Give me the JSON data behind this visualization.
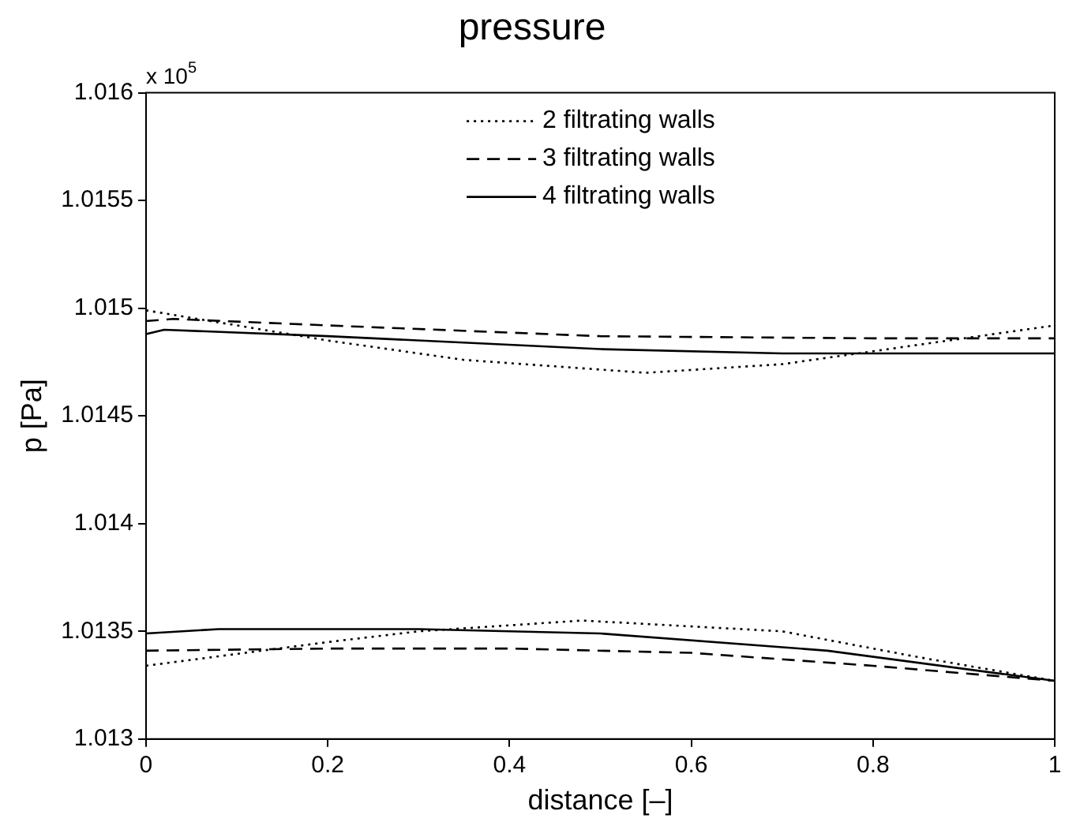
{
  "chart_data": {
    "type": "line",
    "title": "pressure",
    "xlabel": "distance [–]",
    "ylabel": "p [Pa]",
    "annotations": [
      "x 10$^{5}$"
    ],
    "xlim": [
      0,
      1
    ],
    "xticks": [
      0,
      0.2,
      0.4,
      0.6,
      0.8,
      1
    ],
    "ylim": [
      1.013,
      1.016
    ],
    "yticks": [
      1.013,
      1.0135,
      1.014,
      1.0145,
      1.015,
      1.0155,
      1.016
    ],
    "grid": false,
    "legend": "top",
    "marker": "none",
    "series": [
      {
        "name": "2 filtrating walls",
        "color": "#000000",
        "line_style": "dotted",
        "x": [
          0,
          0.2,
          0.35,
          0.55,
          0.7,
          0.8,
          1
        ],
        "values": [
          1.01499,
          1.01485,
          1.01476,
          1.0147,
          1.01474,
          1.0148,
          1.01492
        ]
      },
      {
        "name": "3 filtrating walls",
        "color": "#000000",
        "line_style": "dashed",
        "x": [
          0,
          0.03,
          0.2,
          0.5,
          0.8,
          1
        ],
        "values": [
          1.01494,
          1.01495,
          1.01492,
          1.01487,
          1.01486,
          1.01486
        ]
      },
      {
        "name": "4 filtrating walls",
        "color": "#000000",
        "line_style": "solid",
        "x": [
          0,
          0.02,
          0.2,
          0.5,
          0.7,
          1
        ],
        "values": [
          1.01488,
          1.0149,
          1.01487,
          1.01481,
          1.01479,
          1.01479
        ]
      },
      {
        "color": "#000000",
        "line_style": "dotted",
        "x": [
          0,
          0.2,
          0.3,
          0.48,
          0.7,
          0.85,
          1
        ],
        "values": [
          1.01334,
          1.01345,
          1.0135,
          1.01355,
          1.0135,
          1.01338,
          1.01327
        ]
      },
      {
        "color": "#000000",
        "line_style": "dashed",
        "x": [
          0,
          0.2,
          0.4,
          0.6,
          0.8,
          1
        ],
        "values": [
          1.01341,
          1.01342,
          1.01342,
          1.0134,
          1.01334,
          1.01327
        ]
      },
      {
        "color": "#000000",
        "line_style": "solid",
        "x": [
          0,
          0.08,
          0.3,
          0.5,
          0.75,
          1
        ],
        "values": [
          1.01349,
          1.01351,
          1.01351,
          1.01349,
          1.01341,
          1.01327
        ]
      }
    ]
  }
}
